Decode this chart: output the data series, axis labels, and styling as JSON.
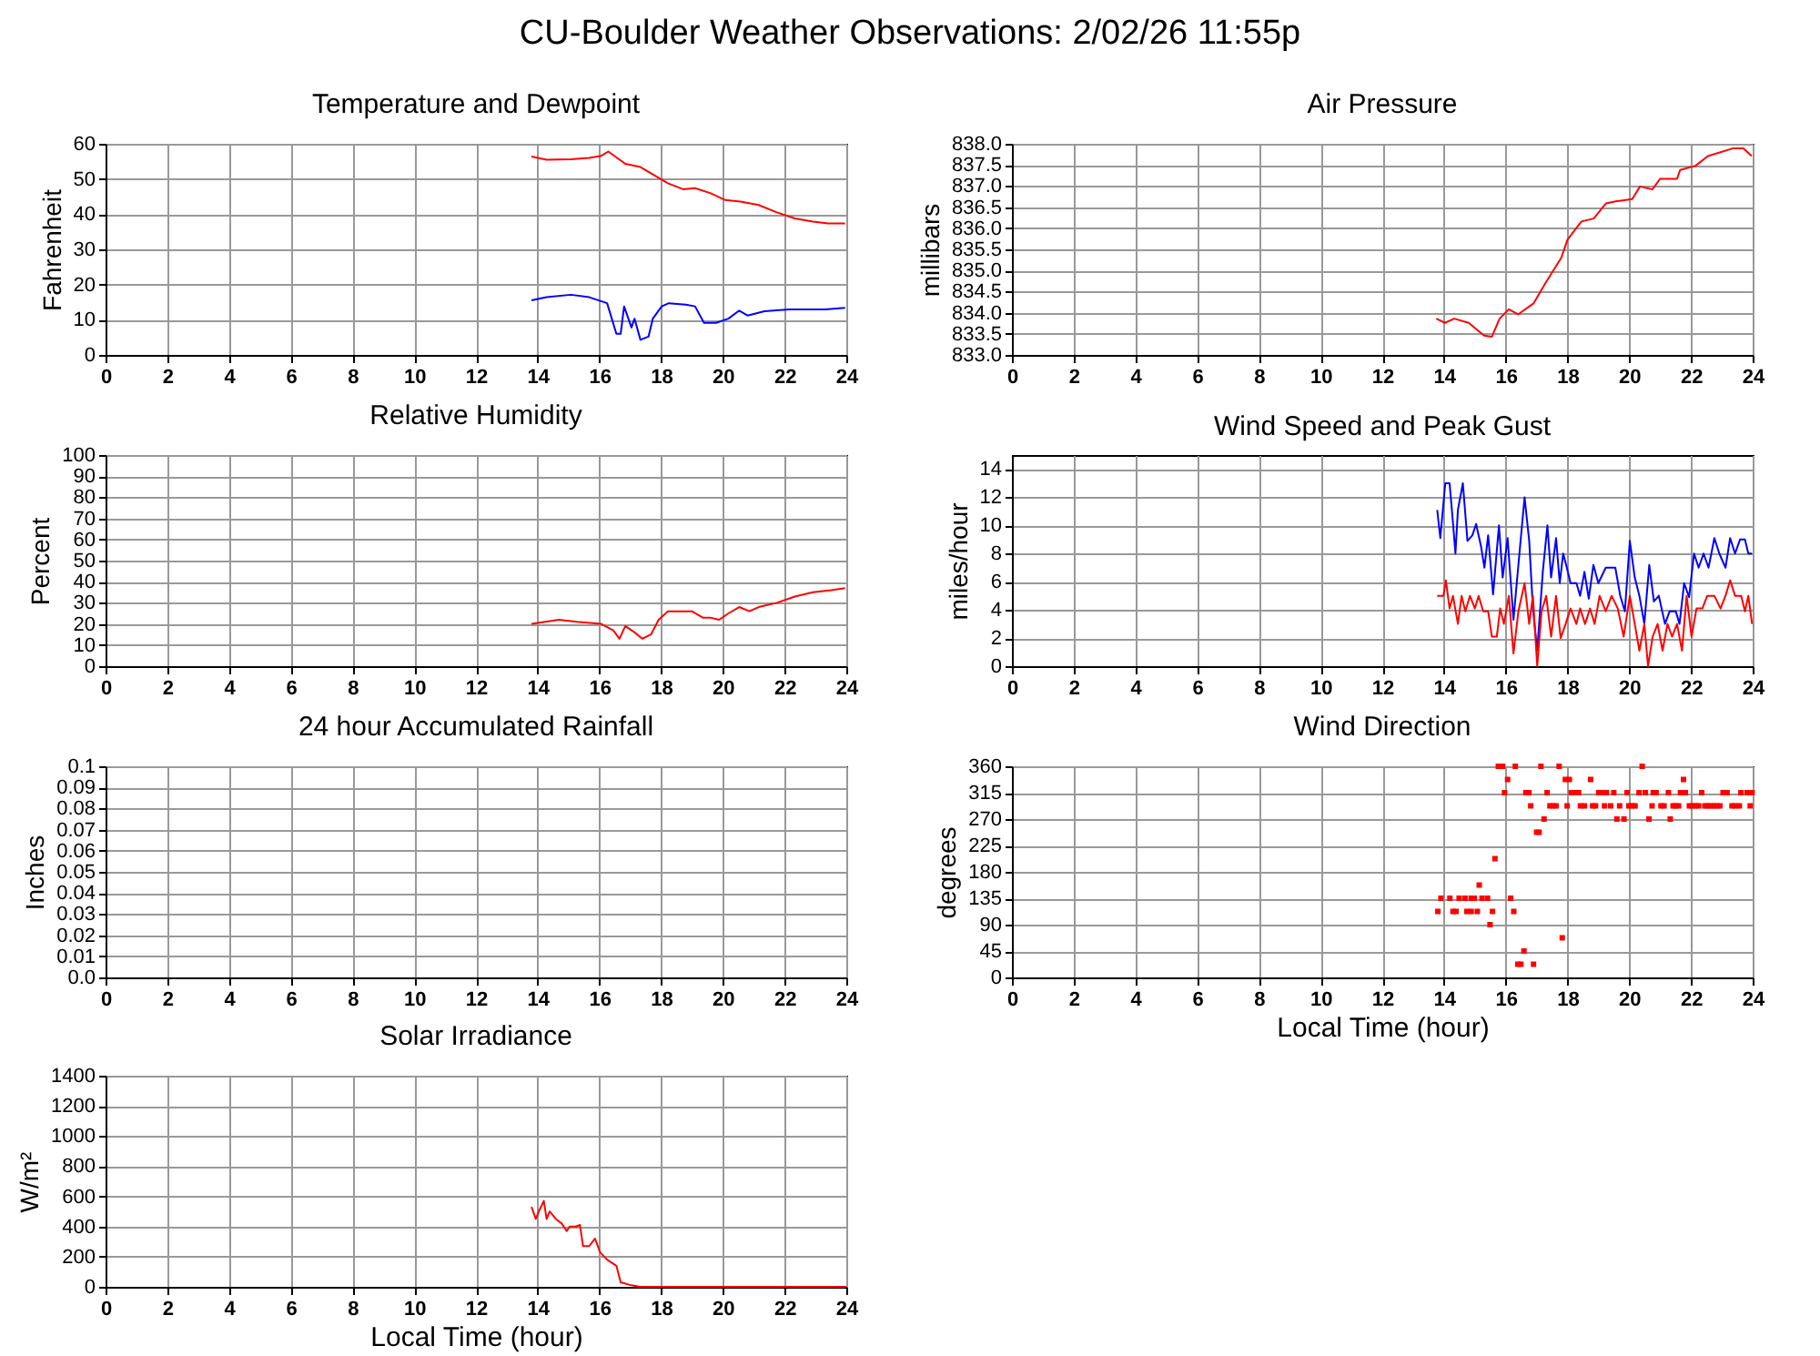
{
  "chart_data": [
    {
      "type": "line",
      "title": "Temperature and Dewpoint",
      "ylabel": "Fahrenheit",
      "annotations": [
        "CU-Boulder Weather Observations: 2/02/26 11:55p"
      ],
      "xlim": [
        0,
        24
      ],
      "xticks": [
        0,
        2,
        4,
        6,
        8,
        10,
        12,
        14,
        16,
        18,
        20,
        22,
        24
      ],
      "ylim": [
        0,
        60
      ],
      "yticks": [
        0,
        10,
        20,
        30,
        40,
        50,
        60
      ],
      "grid": true,
      "series": [
        {
          "color": "#ff0000",
          "x": [
            13.8,
            14.29,
            15.08,
            15.67,
            16.06,
            16.29,
            16.84,
            17.33,
            18.22,
            18.71,
            19.1,
            19.59,
            20.08,
            20.57,
            21.16,
            21.75,
            22.33,
            22.92,
            23.41,
            23.96
          ],
          "values": [
            56.4,
            55.5,
            55.6,
            56.0,
            56.6,
            57.8,
            54.3,
            53.4,
            48.8,
            47.1,
            47.4,
            46.0,
            44.0,
            43.6,
            42.6,
            40.5,
            38.8,
            37.9,
            37.4,
            37.4
          ]
        },
        {
          "color": "#0000ff",
          "x": [
            13.8,
            14.29,
            15.08,
            15.67,
            16.25,
            16.55,
            16.69,
            16.8,
            17.04,
            17.14,
            17.33,
            17.59,
            17.73,
            18.02,
            18.25,
            18.8,
            19.1,
            19.39,
            19.78,
            20.18,
            20.53,
            20.8,
            21.35,
            22.14,
            23.31,
            23.96
          ],
          "values": [
            15.5,
            16.4,
            17.1,
            16.4,
            14.7,
            6.0,
            6.0,
            13.8,
            7.8,
            10.3,
            4.3,
            5.2,
            10.3,
            13.8,
            14.7,
            14.3,
            13.8,
            9.1,
            9.1,
            10.3,
            12.6,
            11.2,
            12.4,
            12.9,
            12.9,
            13.4
          ]
        }
      ]
    },
    {
      "type": "line",
      "title": "Air Pressure",
      "ylabel": "millibars",
      "xlim": [
        0,
        24
      ],
      "xticks": [
        0,
        2,
        4,
        6,
        8,
        10,
        12,
        14,
        16,
        18,
        20,
        22,
        24
      ],
      "ylim": [
        833,
        838
      ],
      "yticks": [
        {
          "value": 833,
          "label": "833.0"
        },
        833.5,
        {
          "value": 834,
          "label": "834.0"
        },
        834.5,
        {
          "value": 835,
          "label": "835.0"
        },
        835.5,
        {
          "value": 836,
          "label": "836.0"
        },
        836.5,
        {
          "value": 837,
          "label": "837.0"
        },
        837.5,
        {
          "value": 838,
          "label": "838.0"
        }
      ],
      "grid": true,
      "series": [
        {
          "color": "#ff0000",
          "x": [
            13.75,
            14.03,
            14.33,
            14.8,
            15.3,
            15.55,
            15.8,
            16.1,
            16.4,
            16.9,
            17.3,
            17.8,
            18.0,
            18.45,
            18.85,
            19.25,
            19.6,
            20.1,
            20.35,
            20.75,
            21.0,
            21.55,
            21.65,
            22.15,
            22.55,
            23.35,
            23.7,
            23.97
          ],
          "values": [
            833.86,
            833.76,
            833.86,
            833.76,
            833.46,
            833.43,
            833.86,
            834.08,
            833.96,
            834.22,
            834.72,
            835.3,
            835.73,
            836.16,
            836.23,
            836.59,
            836.64,
            836.69,
            836.99,
            836.92,
            837.17,
            837.17,
            837.38,
            837.48,
            837.71,
            837.89,
            837.89,
            837.71
          ]
        }
      ]
    },
    {
      "type": "line",
      "title": "Relative Humidity",
      "ylabel": "Percent",
      "xlim": [
        0,
        24
      ],
      "xticks": [
        0,
        2,
        4,
        6,
        8,
        10,
        12,
        14,
        16,
        18,
        20,
        22,
        24
      ],
      "ylim": [
        0,
        100
      ],
      "yticks": [
        0,
        10,
        20,
        30,
        40,
        50,
        60,
        70,
        80,
        90,
        100
      ],
      "grid": true,
      "series": [
        {
          "color": "#ff0000",
          "x": [
            13.8,
            14.69,
            15.27,
            16.06,
            16.45,
            16.65,
            16.84,
            17.14,
            17.39,
            17.67,
            17.92,
            18.22,
            19.0,
            19.35,
            19.59,
            19.88,
            20.18,
            20.53,
            20.86,
            21.16,
            21.75,
            22.33,
            22.92,
            23.51,
            23.96
          ],
          "values": [
            20,
            22,
            21,
            20,
            17,
            13,
            19,
            16,
            13,
            15,
            22,
            26,
            26,
            23,
            23,
            22,
            25,
            28,
            26,
            28,
            30,
            33,
            35,
            36,
            37
          ]
        }
      ]
    },
    {
      "type": "line",
      "title": "Wind Speed and Peak Gust",
      "ylabel": "miles/hour",
      "xlim": [
        0,
        24
      ],
      "xticks": [
        0,
        2,
        4,
        6,
        8,
        10,
        12,
        14,
        16,
        18,
        20,
        22,
        24
      ],
      "ylim": [
        0,
        15
      ],
      "yticks": [
        0,
        2,
        4,
        6,
        8,
        10,
        12,
        14
      ],
      "grid": true,
      "series": [
        {
          "color": "#0000ff",
          "x": [
            13.78,
            13.88,
            14.04,
            14.18,
            14.29,
            14.37,
            14.45,
            14.61,
            14.76,
            14.92,
            15.04,
            15.2,
            15.31,
            15.43,
            15.59,
            15.78,
            15.9,
            16.06,
            16.25,
            16.41,
            16.61,
            16.76,
            16.88,
            17.02,
            17.2,
            17.35,
            17.47,
            17.63,
            17.75,
            17.86,
            17.98,
            18.1,
            18.29,
            18.41,
            18.55,
            18.69,
            18.84,
            19.0,
            19.24,
            19.55,
            19.71,
            19.86,
            20.02,
            20.18,
            20.33,
            20.49,
            20.65,
            20.8,
            20.96,
            21.16,
            21.31,
            21.51,
            21.63,
            21.78,
            21.94,
            22.1,
            22.25,
            22.41,
            22.57,
            22.76,
            22.92,
            23.12,
            23.27,
            23.43,
            23.59,
            23.75,
            23.86,
            23.98
          ],
          "values": [
            11.1,
            9.1,
            13.0,
            13.0,
            10.2,
            8.0,
            11.1,
            13.0,
            8.9,
            9.3,
            10.1,
            8.5,
            7.0,
            9.3,
            5.1,
            10.0,
            6.3,
            9.1,
            3.3,
            7.2,
            12.0,
            8.9,
            4.1,
            1.1,
            6.7,
            10.0,
            6.3,
            9.1,
            5.9,
            8.0,
            7.0,
            5.9,
            5.9,
            5.0,
            6.7,
            4.8,
            7.2,
            5.9,
            7.0,
            7.0,
            5.0,
            3.9,
            8.9,
            6.3,
            5.0,
            3.0,
            7.2,
            4.6,
            5.0,
            3.0,
            3.9,
            3.9,
            3.0,
            5.9,
            4.9,
            8.0,
            7.0,
            8.0,
            7.0,
            9.1,
            8.0,
            7.0,
            9.1,
            8.0,
            9.0,
            9.0,
            8.0,
            8.0
          ]
        },
        {
          "color": "#ff0000",
          "x": [
            13.78,
            13.98,
            14.06,
            14.18,
            14.29,
            14.45,
            14.57,
            14.69,
            14.84,
            15.0,
            15.12,
            15.27,
            15.43,
            15.55,
            15.71,
            15.82,
            15.94,
            16.1,
            16.25,
            16.41,
            16.61,
            16.76,
            16.88,
            17.02,
            17.16,
            17.31,
            17.47,
            17.63,
            17.78,
            17.94,
            18.1,
            18.29,
            18.41,
            18.57,
            18.73,
            18.88,
            19.04,
            19.24,
            19.43,
            19.63,
            19.82,
            20.02,
            20.18,
            20.33,
            20.49,
            20.61,
            20.76,
            20.92,
            21.08,
            21.24,
            21.39,
            21.55,
            21.71,
            21.86,
            22.02,
            22.18,
            22.37,
            22.53,
            22.76,
            22.96,
            23.12,
            23.27,
            23.43,
            23.63,
            23.75,
            23.86,
            23.98
          ],
          "values": [
            5.0,
            5.0,
            6.1,
            4.1,
            5.0,
            3.0,
            5.0,
            3.9,
            5.0,
            4.1,
            5.0,
            3.9,
            3.9,
            2.1,
            2.1,
            4.1,
            3.0,
            5.0,
            0.9,
            3.9,
            5.9,
            3.0,
            5.0,
            0,
            3.9,
            5.0,
            2.1,
            5.0,
            2.0,
            3.0,
            4.1,
            3.0,
            4.1,
            3.0,
            4.1,
            3.0,
            5.0,
            3.9,
            5.0,
            4.1,
            2.1,
            5.0,
            3.0,
            1.1,
            3.0,
            0,
            2.1,
            3.0,
            1.1,
            3.0,
            2.1,
            3.0,
            1.1,
            5.0,
            2.1,
            4.1,
            4.1,
            5.0,
            5.0,
            4.1,
            5.0,
            6.1,
            5.0,
            5.0,
            3.9,
            5.0,
            3.0
          ]
        }
      ]
    },
    {
      "type": "line",
      "title": "24 hour Accumulated Rainfall",
      "ylabel": "Inches",
      "xlim": [
        0,
        24
      ],
      "xticks": [
        0,
        2,
        4,
        6,
        8,
        10,
        12,
        14,
        16,
        18,
        20,
        22,
        24
      ],
      "ylim": [
        0,
        0.1
      ],
      "yticks": [
        {
          "value": 0,
          "label": "0.0"
        },
        0.01,
        0.02,
        0.03,
        0.04,
        0.05,
        0.06,
        0.07,
        0.08,
        0.09,
        0.1
      ],
      "grid": true
    },
    {
      "type": "scatter",
      "title": "Wind Direction",
      "ylabel": "degrees",
      "xlabel": "Local Time (hour)",
      "xlim": [
        0,
        24
      ],
      "xticks": [
        0,
        2,
        4,
        6,
        8,
        10,
        12,
        14,
        16,
        18,
        20,
        22,
        24
      ],
      "ylim": [
        0,
        360
      ],
      "yticks": [
        0,
        45,
        90,
        135,
        180,
        225,
        270,
        315,
        360
      ],
      "grid": true,
      "marker": "square",
      "series": [
        {
          "color": "#ff0000",
          "x": [
            15.76,
            15.9,
            16.31,
            17.14,
            17.73,
            20.42,
            16.06,
            17.93,
            18.06,
            18.75,
            21.76,
            15.96,
            16.65,
            16.75,
            17.34,
            18.12,
            18.22,
            18.36,
            19.01,
            19.1,
            19.26,
            19.5,
            19.93,
            20.32,
            20.52,
            20.78,
            20.87,
            21.27,
            21.66,
            21.82,
            22.35,
            23.04,
            23.17,
            23.62,
            23.82,
            23.98,
            16.81,
            17.43,
            17.53,
            17.63,
            17.99,
            18.42,
            18.55,
            18.81,
            18.91,
            19.2,
            19.4,
            19.69,
            19.99,
            20.09,
            20.19,
            20.74,
            21.03,
            21.13,
            21.42,
            21.5,
            21.6,
            21.95,
            22.05,
            22.15,
            22.25,
            22.45,
            22.54,
            22.64,
            22.74,
            22.84,
            22.94,
            23.33,
            23.43,
            23.57,
            23.92,
            17.24,
            19.6,
            19.83,
            20.64,
            21.33,
            17.0,
            17.08,
            15.65,
            15.14,
            13.9,
            14.19,
            14.49,
            14.68,
            14.88,
            14.98,
            15.23,
            15.41,
            16.16,
            13.8,
            14.29,
            14.39,
            14.74,
            14.88,
            15.08,
            15.57,
            16.26,
            15.49,
            17.83,
            16.59,
            16.39,
            16.49,
            16.9
          ],
          "values": [
            360,
            360,
            360,
            360,
            360,
            360,
            337.5,
            337.5,
            337.5,
            337.5,
            337.5,
            315,
            315,
            315,
            315,
            315,
            315,
            315,
            315,
            315,
            315,
            315,
            315,
            315,
            315,
            315,
            315,
            315,
            315,
            315,
            315,
            315,
            315,
            315,
            315,
            315,
            292.5,
            292.5,
            292.5,
            292.5,
            292.5,
            292.5,
            292.5,
            292.5,
            292.5,
            292.5,
            292.5,
            292.5,
            292.5,
            292.5,
            292.5,
            292.5,
            292.5,
            292.5,
            292.5,
            292.5,
            292.5,
            292.5,
            292.5,
            292.5,
            292.5,
            292.5,
            292.5,
            292.5,
            292.5,
            292.5,
            292.5,
            292.5,
            292.5,
            292.5,
            292.5,
            270,
            270,
            270,
            270,
            270,
            247.5,
            247.5,
            202.5,
            157.5,
            135,
            135,
            135,
            135,
            135,
            135,
            135,
            135,
            135,
            112.5,
            112.5,
            112.5,
            112.5,
            112.5,
            112.5,
            112.5,
            112.5,
            90,
            67.5,
            45,
            22.5,
            22.5,
            22.5
          ]
        }
      ]
    },
    {
      "type": "line",
      "title": "Solar Irradiance",
      "ylabel": "W/m²",
      "xlabel": "Local Time (hour)",
      "xlim": [
        0,
        24
      ],
      "xticks": [
        0,
        2,
        4,
        6,
        8,
        10,
        12,
        14,
        16,
        18,
        20,
        22,
        24
      ],
      "ylim": [
        0,
        1400
      ],
      "yticks": [
        0,
        200,
        400,
        600,
        800,
        1000,
        1200,
        1400
      ],
      "grid": true,
      "series": [
        {
          "color": "#ff0000",
          "x": [
            13.8,
            13.94,
            14.06,
            14.2,
            14.29,
            14.39,
            14.59,
            14.78,
            14.94,
            15.04,
            15.24,
            15.37,
            15.47,
            15.67,
            15.86,
            16.02,
            16.25,
            16.55,
            16.69,
            17.04,
            17.33,
            24
          ],
          "values": [
            530,
            450,
            510,
            570,
            450,
            500,
            450,
            420,
            370,
            400,
            400,
            410,
            270,
            270,
            320,
            230,
            180,
            140,
            30,
            10,
            0,
            0
          ]
        }
      ]
    }
  ]
}
